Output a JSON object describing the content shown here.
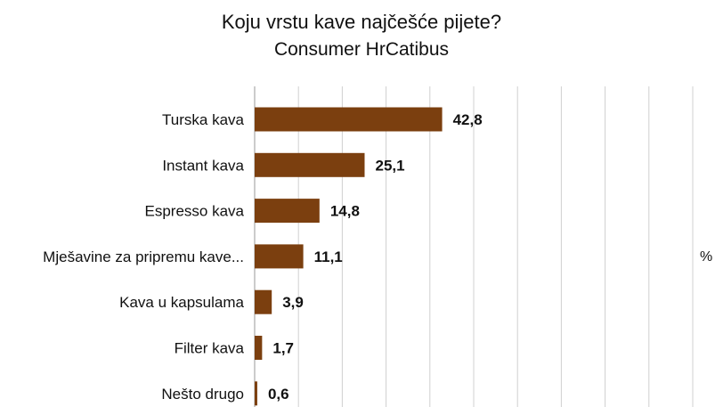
{
  "chart_data": {
    "type": "bar",
    "orientation": "horizontal",
    "title": "Koju vrstu kave najčešće pijete?",
    "subtitle": "Consumer HrCatibus",
    "unit_label": "%",
    "categories": [
      "Turska kava",
      "Instant kava",
      "Espresso kava",
      "Mješavine za pripremu kave...",
      "Kava u kapsulama",
      "Filter kava",
      "Nešto drugo"
    ],
    "value_labels": [
      "42,8",
      "25,1",
      "14,8",
      "11,1",
      "3,9",
      "1,7",
      "0,6"
    ],
    "values": [
      42.8,
      25.1,
      14.8,
      11.1,
      3.9,
      1.7,
      0.6
    ],
    "xlim": [
      0,
      100
    ],
    "grid": true,
    "bar_color": "#7B3F0F",
    "grid_color": "#d0d0d0"
  }
}
